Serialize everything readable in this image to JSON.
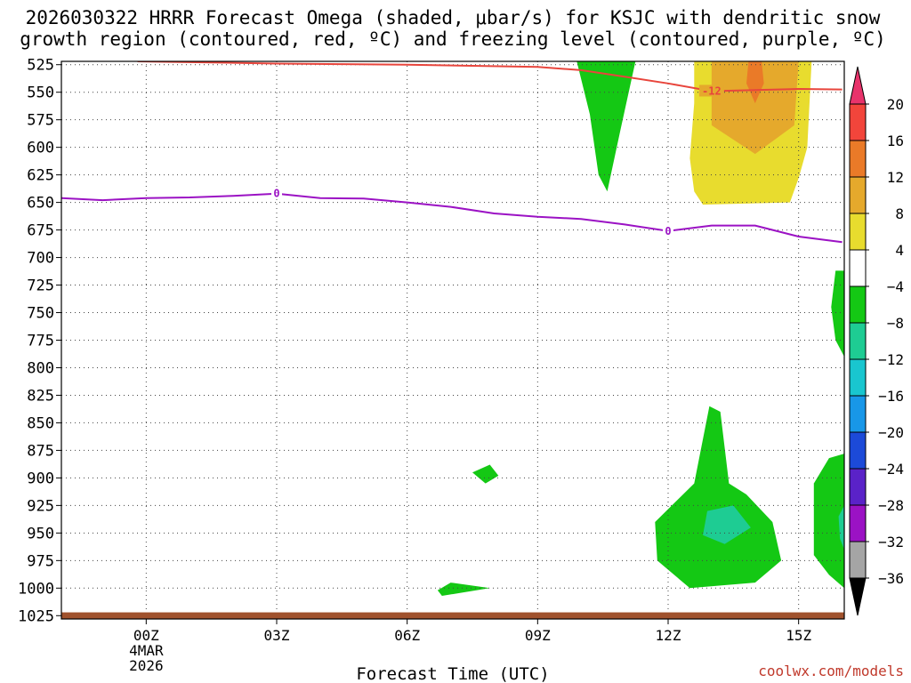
{
  "chart_data": {
    "type": "contour",
    "title_line1": "2026030322 HRRR Forecast Omega (shaded, μbar/s) for KSJC with dendritic snow",
    "title_line2": "growth region (contoured, red, ºC) and freezing level (contoured, purple, ºC)",
    "xlabel": "Forecast Time (UTC)",
    "credit": "coolwx.com/models",
    "x_range_hours": [
      -1.95,
      16.05
    ],
    "y_range_hpa": [
      522,
      1028
    ],
    "y_ticks": [
      525,
      550,
      575,
      600,
      625,
      650,
      675,
      700,
      725,
      750,
      775,
      800,
      825,
      850,
      875,
      900,
      925,
      950,
      975,
      1000,
      1025
    ],
    "x_ticks": [
      {
        "hour": 0,
        "label": "00Z",
        "sub1": "4MAR",
        "sub2": "2026"
      },
      {
        "hour": 3,
        "label": "03Z",
        "sub1": "",
        "sub2": ""
      },
      {
        "hour": 6,
        "label": "06Z",
        "sub1": "",
        "sub2": ""
      },
      {
        "hour": 9,
        "label": "09Z",
        "sub1": "",
        "sub2": ""
      },
      {
        "hour": 12,
        "label": "12Z",
        "sub1": "",
        "sub2": ""
      },
      {
        "hour": 15,
        "label": "15Z",
        "sub1": "",
        "sub2": ""
      }
    ],
    "colorbar": {
      "levels": [
        20,
        16,
        12,
        8,
        4,
        -4,
        -8,
        -12,
        -16,
        -20,
        -24,
        -28,
        -32,
        -36
      ],
      "colors": [
        "#e8336b",
        "#f2453b",
        "#ea7a28",
        "#e5a92c",
        "#e8dc2e",
        "#ffffff",
        "#14c814",
        "#1ecc93",
        "#19c6cf",
        "#1897e8",
        "#1c4ad8",
        "#5a22c8",
        "#9b12c4",
        "#a5a5a5",
        "#000000"
      ]
    },
    "dendritic_contour": {
      "label": "-12",
      "label_hour": 13,
      "label_p": 549,
      "points": [
        [
          -0.2,
          522
        ],
        [
          1.5,
          523
        ],
        [
          3,
          524
        ],
        [
          4.5,
          524.5
        ],
        [
          6,
          525
        ],
        [
          7.5,
          526
        ],
        [
          9,
          527
        ],
        [
          10,
          530
        ],
        [
          11,
          536
        ],
        [
          12,
          542
        ],
        [
          13,
          549
        ],
        [
          14,
          548
        ],
        [
          15,
          547
        ],
        [
          16,
          547.5
        ]
      ]
    },
    "freezing_contour": {
      "labels": [
        {
          "text": "0",
          "hour": 3,
          "p": 642
        },
        {
          "text": "0",
          "hour": 12,
          "p": 676
        }
      ],
      "points": [
        [
          -1.95,
          646
        ],
        [
          -1,
          648
        ],
        [
          0,
          646
        ],
        [
          1,
          645.5
        ],
        [
          2,
          644
        ],
        [
          3,
          642
        ],
        [
          4,
          646
        ],
        [
          5,
          646.5
        ],
        [
          6,
          650
        ],
        [
          7,
          654
        ],
        [
          8,
          660
        ],
        [
          9,
          663
        ],
        [
          10,
          665
        ],
        [
          11,
          670
        ],
        [
          12,
          676
        ],
        [
          13,
          671
        ],
        [
          14,
          671
        ],
        [
          15,
          681
        ],
        [
          16,
          686
        ]
      ]
    },
    "shaded_regions": [
      {
        "value": 6,
        "color": "#e8dc2e",
        "points": [
          [
            12.6,
            522
          ],
          [
            15.3,
            522
          ],
          [
            15.2,
            600
          ],
          [
            15.0,
            628
          ],
          [
            14.8,
            650
          ],
          [
            12.8,
            652
          ],
          [
            12.6,
            640
          ],
          [
            12.5,
            610
          ],
          [
            12.6,
            560
          ]
        ]
      },
      {
        "value": 10,
        "color": "#e5a92c",
        "points": [
          [
            13.0,
            522
          ],
          [
            15.0,
            522
          ],
          [
            14.9,
            580
          ],
          [
            14.0,
            606
          ],
          [
            13.0,
            580
          ]
        ]
      },
      {
        "value": 14,
        "color": "#ea7a28",
        "points": [
          [
            13.85,
            522
          ],
          [
            14.15,
            522
          ],
          [
            14.2,
            542
          ],
          [
            14.0,
            560
          ],
          [
            13.8,
            542
          ]
        ]
      },
      {
        "value": -6,
        "color": "#14c814",
        "points": [
          [
            9.9,
            522
          ],
          [
            11.25,
            522
          ],
          [
            10.9,
            585
          ],
          [
            10.6,
            640
          ],
          [
            10.4,
            625
          ],
          [
            10.2,
            570
          ]
        ]
      },
      {
        "value": -6,
        "color": "#14c814",
        "points": [
          [
            15.85,
            712
          ],
          [
            16.05,
            712
          ],
          [
            16.05,
            790
          ],
          [
            15.85,
            775
          ],
          [
            15.75,
            745
          ]
        ]
      },
      {
        "value": -6,
        "color": "#14c814",
        "points": [
          [
            7.5,
            895
          ],
          [
            7.9,
            888
          ],
          [
            8.1,
            898
          ],
          [
            7.8,
            905
          ]
        ]
      },
      {
        "value": -6,
        "color": "#14c814",
        "points": [
          [
            6.7,
            1002
          ],
          [
            7.0,
            995
          ],
          [
            7.9,
            1000
          ],
          [
            6.8,
            1007
          ]
        ]
      },
      {
        "value": -6,
        "color": "#14c814",
        "points": [
          [
            12.95,
            835
          ],
          [
            12.6,
            905
          ],
          [
            11.7,
            940
          ],
          [
            11.75,
            975
          ],
          [
            12.5,
            1000
          ],
          [
            14.0,
            995
          ],
          [
            14.6,
            975
          ],
          [
            14.4,
            940
          ],
          [
            13.8,
            915
          ],
          [
            13.4,
            905
          ],
          [
            13.2,
            840
          ]
        ]
      },
      {
        "value": -10,
        "color": "#1ecc93",
        "points": [
          [
            12.9,
            930
          ],
          [
            13.5,
            925
          ],
          [
            13.9,
            945
          ],
          [
            13.3,
            960
          ],
          [
            12.8,
            952
          ]
        ]
      },
      {
        "value": -6,
        "color": "#14c814",
        "points": [
          [
            15.35,
            905
          ],
          [
            15.7,
            882
          ],
          [
            16.05,
            878
          ],
          [
            16.05,
            1000
          ],
          [
            15.7,
            988
          ],
          [
            15.35,
            970
          ]
        ]
      },
      {
        "value": -10,
        "color": "#1ecc93",
        "points": [
          [
            15.92,
            935
          ],
          [
            16.05,
            925
          ],
          [
            16.05,
            965
          ],
          [
            15.95,
            955
          ]
        ]
      }
    ],
    "ground": {
      "color": "#a0522d",
      "top_hpa": 1022
    }
  }
}
